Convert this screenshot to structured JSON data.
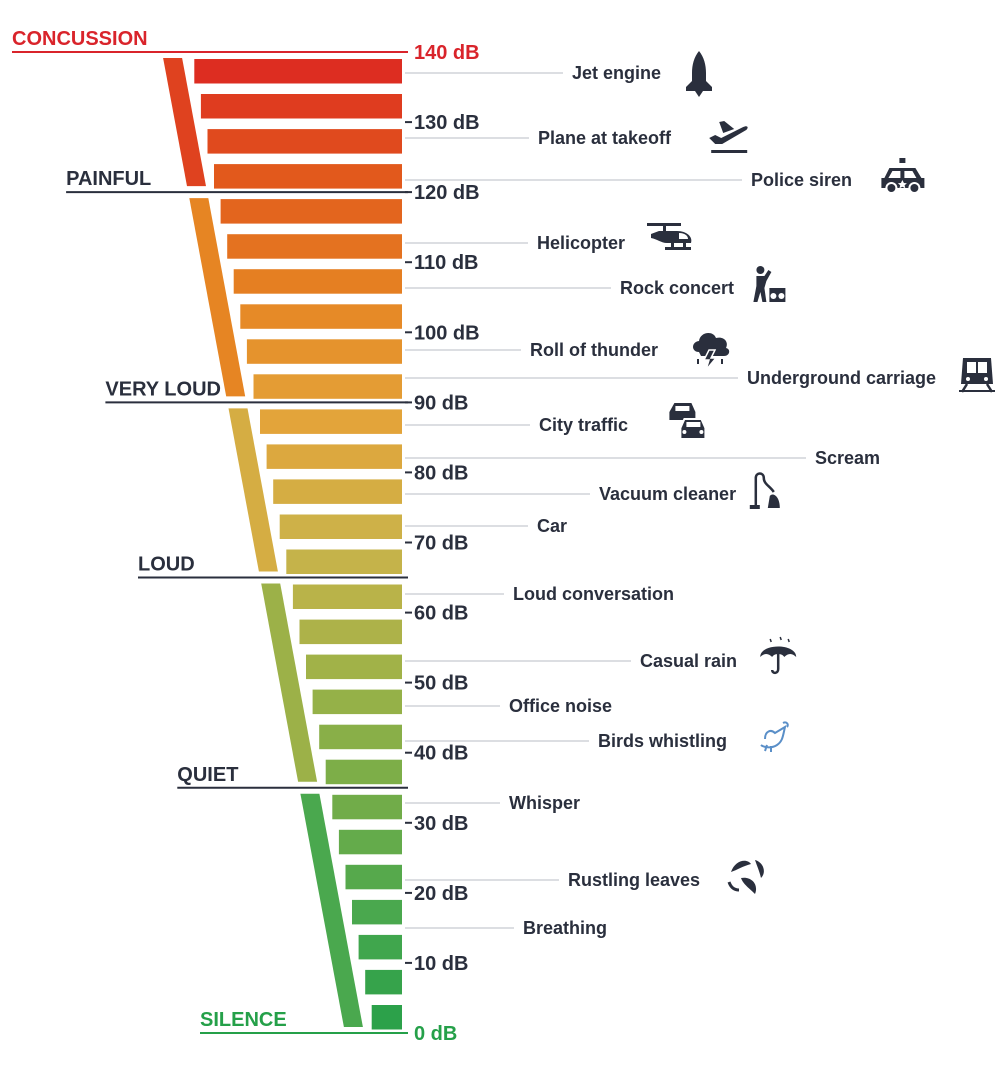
{
  "scale": {
    "min_db": 0,
    "max_db": 140,
    "tick_step_db": 10,
    "unit": "dB",
    "ticks": [
      "140 dB",
      "130 dB",
      "120 dB",
      "110 dB",
      "100 dB",
      "90 dB",
      "80 dB",
      "70 dB",
      "60 dB",
      "50 dB",
      "40 dB",
      "30 dB",
      "20 dB",
      "10 dB",
      "0 dB"
    ],
    "top_tick_color": "#d9242b",
    "bottom_tick_color": "#25a049",
    "tick_color": "#2a2f3d"
  },
  "zones": [
    {
      "label": "CONCUSSION",
      "db": 140,
      "color": "#d9242b"
    },
    {
      "label": "PAINFUL",
      "db": 120,
      "color": "#2a2f3d"
    },
    {
      "label": "VERY LOUD",
      "db": 90,
      "color": "#2a2f3d"
    },
    {
      "label": "LOUD",
      "db": 65,
      "color": "#2a2f3d"
    },
    {
      "label": "QUIET",
      "db": 35,
      "color": "#2a2f3d"
    },
    {
      "label": "SILENCE",
      "db": 0,
      "color": "#25a049"
    }
  ],
  "sounds": [
    {
      "label": "Jet engine",
      "db": 140,
      "icon": "rocket-icon"
    },
    {
      "label": "Plane at takeoff",
      "db": 130,
      "icon": "plane-takeoff-icon"
    },
    {
      "label": "Police siren",
      "db": 120,
      "icon": "police-car-icon"
    },
    {
      "label": "Helicopter",
      "db": 110,
      "icon": "helicopter-icon"
    },
    {
      "label": "Rock concert",
      "db": 110,
      "icon": "rock-concert-icon"
    },
    {
      "label": "Roll of thunder",
      "db": 100,
      "icon": "thunder-cloud-icon"
    },
    {
      "label": "Underground carriage",
      "db": 90,
      "icon": "train-icon"
    },
    {
      "label": "City traffic",
      "db": 90,
      "icon": "traffic-cars-icon"
    },
    {
      "label": "Scream",
      "db": 80,
      "icon": ""
    },
    {
      "label": "Vacuum cleaner",
      "db": 80,
      "icon": "vacuum-cleaner-icon"
    },
    {
      "label": "Car",
      "db": 70,
      "icon": ""
    },
    {
      "label": "Loud conversation",
      "db": 60,
      "icon": ""
    },
    {
      "label": "Casual rain",
      "db": 50,
      "icon": "umbrella-icon"
    },
    {
      "label": "Office noise",
      "db": 50,
      "icon": ""
    },
    {
      "label": "Birds whistling",
      "db": 40,
      "icon": "bird-icon"
    },
    {
      "label": "Whisper",
      "db": 30,
      "icon": ""
    },
    {
      "label": "Rustling leaves",
      "db": 20,
      "icon": "leaves-icon"
    },
    {
      "label": "Breathing",
      "db": 10,
      "icon": ""
    }
  ],
  "colors": {
    "text": "#2a2f3d",
    "connector": "#b8bcc4",
    "gradient": [
      "#dc2522",
      "#e2581c",
      "#e68523",
      "#e3a43a",
      "#cbb34a",
      "#a2b248",
      "#78ad48",
      "#4aa84e",
      "#28a049"
    ]
  }
}
